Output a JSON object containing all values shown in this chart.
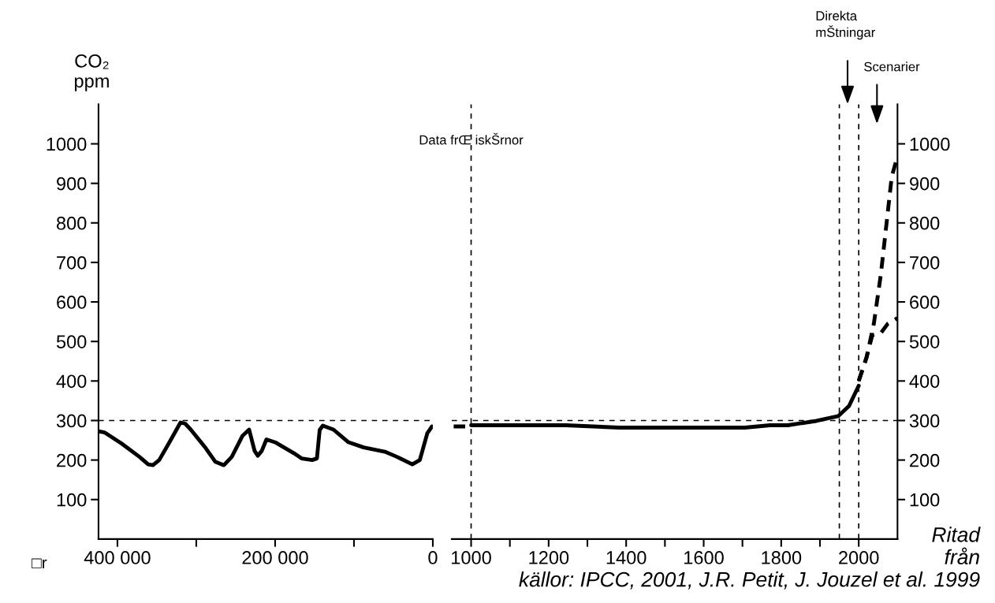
{
  "chart_data": [
    {
      "type": "line",
      "xlabel": "□r",
      "ylabel": "CO₂\nppm",
      "xlim": [
        424000,
        0
      ],
      "xticks": [
        {
          "value": 400000,
          "label": "400 000"
        },
        {
          "value": 300000,
          "label": null
        },
        {
          "value": 200000,
          "label": "200 000"
        },
        {
          "value": 100000,
          "label": null
        },
        0
      ],
      "ylim": [
        0,
        1100
      ],
      "yticks": [
        100,
        200,
        300,
        400,
        500,
        600,
        700,
        800,
        900,
        1000
      ],
      "ref_lines": [
        {
          "axis": "y",
          "value": 300,
          "color": "#000000",
          "line_style": "dashed"
        }
      ],
      "series": [
        {
          "color": "#000000",
          "line_style": "solid",
          "x": [
            424000,
            416500,
            395000,
            372000,
            361000,
            355000,
            347000,
            334000,
            320000,
            314000,
            307000,
            288000,
            276000,
            265000,
            255000,
            241500,
            233000,
            226000,
            222000,
            217000,
            211000,
            199000,
            176000,
            166500,
            153000,
            147000,
            143500,
            139500,
            126000,
            107000,
            87700,
            60800,
            45400,
            26000,
            16500,
            7000,
            1000
          ],
          "values": [
            273,
            270,
            242,
            208,
            189,
            187,
            200,
            245,
            295,
            292,
            277,
            230,
            196,
            187,
            208,
            261,
            277,
            223,
            211,
            223,
            252,
            244,
            217,
            204,
            200,
            204,
            276,
            287,
            277,
            245,
            232,
            221,
            208,
            189,
            200,
            268,
            285
          ]
        }
      ]
    },
    {
      "type": "line",
      "xlim": [
        950,
        2100
      ],
      "xticks": [
        1000,
        {
          "value": 1100,
          "label": null
        },
        1200,
        {
          "value": 1300,
          "label": null
        },
        1400,
        {
          "value": 1500,
          "label": null
        },
        1600,
        {
          "value": 1700,
          "label": null
        },
        1800,
        {
          "value": 1900,
          "label": null
        },
        2000
      ],
      "ylim": [
        0,
        1100
      ],
      "yticks": [
        100,
        200,
        300,
        400,
        500,
        600,
        700,
        800,
        900,
        1000
      ],
      "ref_lines": [
        {
          "axis": "y",
          "value": 300,
          "color": "#000000",
          "line_style": "dashed"
        },
        {
          "axis": "x",
          "value": 1000,
          "label": "Data frŒ iskŠrnor",
          "color": "#000000",
          "line_style": "dashed"
        },
        {
          "axis": "x",
          "value": 1950,
          "color": "#000000",
          "line_style": "dashed"
        },
        {
          "axis": "x",
          "value": 2000,
          "color": "#000000",
          "line_style": "dashed"
        }
      ],
      "annotations": [
        "Direkta\nmŠtningar",
        "Scenarier",
        "Ritad\nfrån\nkällor: IPCC, 2001, J.R. Petit, J. Jouzel et al. 1999"
      ],
      "series": [
        {
          "color": "#000000",
          "line_style": "dashed",
          "x": [
            955,
            1000
          ],
          "values": [
            285,
            285
          ]
        },
        {
          "color": "#000000",
          "line_style": "solid",
          "x": [
            1000,
            1244,
            1383,
            1706,
            1771,
            1817,
            1891,
            1947,
            1975,
            2000
          ],
          "values": [
            288,
            288,
            282,
            282,
            288,
            288,
            299,
            311,
            337,
            388
          ]
        },
        {
          "color": "#000000",
          "line_style": "dashed",
          "x": [
            2000,
            2020,
            2039,
            2057,
            2071,
            2085,
            2100
          ],
          "values": [
            400,
            459,
            545,
            669,
            792,
            916,
            969
          ]
        },
        {
          "color": "#000000",
          "line_style": "dashed",
          "x": [
            2000,
            2020,
            2035,
            2057,
            2075,
            2100
          ],
          "values": [
            400,
            459,
            516,
            521,
            545,
            559
          ]
        }
      ]
    }
  ]
}
